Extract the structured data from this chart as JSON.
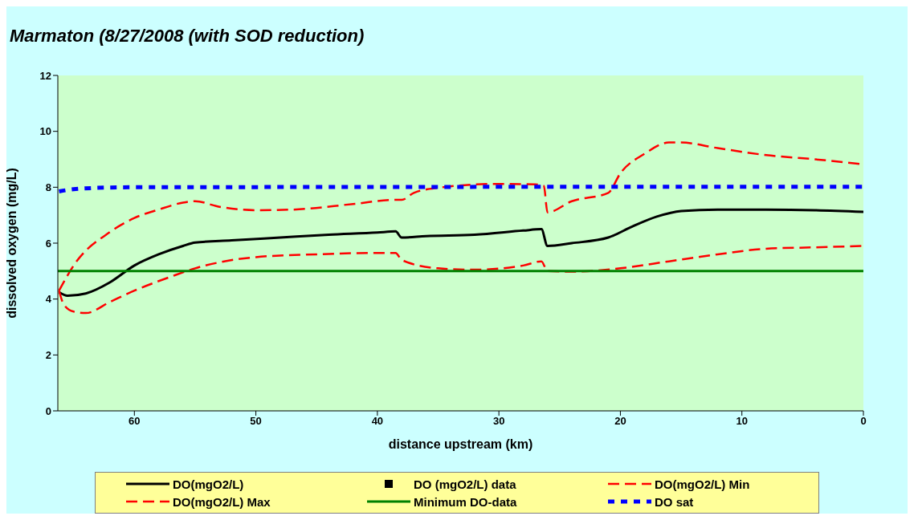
{
  "chart_data": {
    "type": "line",
    "title": "Marmaton (8/27/2008 (with SOD reduction)",
    "xlabel": "distance upstream (km)",
    "ylabel": "dissolved oxygen (mg/L)",
    "xlim": [
      66.3,
      0
    ],
    "xticks": [
      60,
      50,
      40,
      30,
      20,
      10,
      0
    ],
    "ylim": [
      0,
      12
    ],
    "yticks": [
      0,
      2,
      4,
      6,
      8,
      10,
      12
    ],
    "legend": "bottom",
    "series": [
      {
        "name": "DO(mgO2/L)",
        "color": "#000000",
        "line_style": "solid",
        "x": [
          66.2,
          65.5,
          64,
          62,
          60,
          58,
          56,
          55,
          52,
          48,
          44,
          40,
          38.5,
          38,
          36,
          32,
          28,
          26.5,
          26,
          24,
          21,
          19,
          17,
          15,
          12,
          8,
          4,
          0
        ],
        "values": [
          4.25,
          4.12,
          4.2,
          4.6,
          5.2,
          5.6,
          5.9,
          6.02,
          6.1,
          6.2,
          6.3,
          6.38,
          6.42,
          6.2,
          6.25,
          6.3,
          6.45,
          6.5,
          5.9,
          6.0,
          6.2,
          6.6,
          6.95,
          7.15,
          7.2,
          7.2,
          7.18,
          7.12
        ]
      },
      {
        "name": "DO (mgO2/L) data",
        "type": "scatter",
        "marker": "square",
        "color": "#000000"
      },
      {
        "name": "DO(mgO2/L) Min",
        "color": "#ff0000",
        "line_style": "dashed",
        "x": [
          66.2,
          65.8,
          65,
          64,
          62,
          60,
          57,
          55,
          50,
          45,
          40,
          38.5,
          38,
          35,
          32,
          28,
          26.5,
          26,
          24,
          20,
          16,
          12,
          8,
          4,
          0
        ],
        "values": [
          4.3,
          3.8,
          3.55,
          3.5,
          3.9,
          4.3,
          4.8,
          5.1,
          5.5,
          5.6,
          5.65,
          5.65,
          5.4,
          5.1,
          5.05,
          5.2,
          5.35,
          5.0,
          4.98,
          5.1,
          5.35,
          5.6,
          5.8,
          5.85,
          5.9
        ]
      },
      {
        "name": "DO(mgO2/L) Max",
        "color": "#ff0000",
        "line_style": "dashed",
        "x": [
          66.2,
          65,
          62,
          60,
          58,
          56,
          55,
          53,
          50,
          47,
          42,
          38.5,
          38,
          37,
          35,
          30,
          27,
          26.3,
          26,
          24,
          21,
          20,
          18,
          16,
          15,
          12,
          8,
          4,
          0
        ],
        "values": [
          4.3,
          5.2,
          6.4,
          6.9,
          7.2,
          7.45,
          7.5,
          7.3,
          7.18,
          7.2,
          7.4,
          7.55,
          7.55,
          7.8,
          7.98,
          8.12,
          8.1,
          8.05,
          7.1,
          7.5,
          7.8,
          8.5,
          9.2,
          9.6,
          9.6,
          9.4,
          9.15,
          9.0,
          8.82
        ]
      },
      {
        "name": "Minimum DO-data",
        "color": "#008000",
        "line_style": "solid",
        "x": [
          66.3,
          0
        ],
        "values": [
          5,
          5
        ]
      },
      {
        "name": "DO sat",
        "color": "#0000ff",
        "line_style": "dotted",
        "x": [
          66.2,
          65,
          62,
          60,
          0
        ],
        "values": [
          7.85,
          7.93,
          7.99,
          8.0,
          8.02
        ]
      }
    ]
  }
}
